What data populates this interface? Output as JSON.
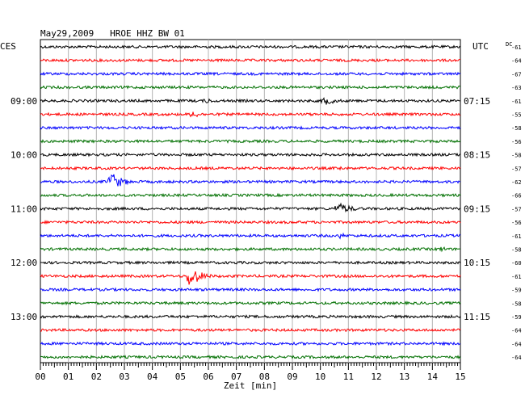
{
  "header": {
    "title": "May29,2009   HROE HHZ BW 01",
    "left_zone": "CES",
    "right_zone": "UTC",
    "dc_label": "DC"
  },
  "chart_data": {
    "type": "line",
    "title": "May29,2009   HROE HHZ BW 01",
    "xlabel": "Zeit [min]",
    "xlim": [
      0,
      15
    ],
    "x_ticks": [
      "00",
      "01",
      "02",
      "03",
      "04",
      "05",
      "06",
      "07",
      "08",
      "09",
      "10",
      "11",
      "12",
      "13",
      "14",
      "15"
    ],
    "grid": true,
    "trace_colors": [
      "#000000",
      "#ff0000",
      "#0000ff",
      "#007000"
    ],
    "rows": 24,
    "left_time_labels": [
      {
        "row": 4,
        "text": "09:00"
      },
      {
        "row": 8,
        "text": "10:00"
      },
      {
        "row": 12,
        "text": "11:00"
      },
      {
        "row": 16,
        "text": "12:00"
      },
      {
        "row": 20,
        "text": "13:00"
      }
    ],
    "right_time_labels": [
      {
        "row": 0,
        "text": "UTC"
      },
      {
        "row": 4,
        "text": "07:15"
      },
      {
        "row": 8,
        "text": "08:15"
      },
      {
        "row": 12,
        "text": "09:15"
      },
      {
        "row": 16,
        "text": "10:15"
      },
      {
        "row": 20,
        "text": "11:15"
      }
    ],
    "dc_offsets": [
      "-61",
      "-64",
      "-67",
      "-63",
      "-61",
      "-55",
      "-58",
      "-56",
      "-58",
      "-57",
      "-62",
      "-66",
      "-57",
      "-56",
      "-61",
      "-58",
      "-60",
      "-61",
      "-59",
      "-58",
      "-59",
      "-64",
      "-64",
      "-64"
    ],
    "events": [
      {
        "row": 4,
        "minute": 5.9,
        "amp": 4,
        "dur": 0.9
      },
      {
        "row": 4,
        "minute": 10.1,
        "amp": 6,
        "dur": 1.5
      },
      {
        "row": 5,
        "minute": 5.4,
        "amp": 6,
        "dur": 1.0
      },
      {
        "row": 9,
        "minute": 10.7,
        "amp": 3,
        "dur": 0.8
      },
      {
        "row": 10,
        "minute": 2.5,
        "amp": 13,
        "dur": 1.2
      },
      {
        "row": 12,
        "minute": 10.6,
        "amp": 8,
        "dur": 1.6
      },
      {
        "row": 14,
        "minute": 10.7,
        "amp": 4,
        "dur": 0.8
      },
      {
        "row": 15,
        "minute": 14.3,
        "amp": 4,
        "dur": 0.8
      },
      {
        "row": 16,
        "minute": 7.0,
        "amp": 3,
        "dur": 0.8
      },
      {
        "row": 17,
        "minute": 5.3,
        "amp": 15,
        "dur": 1.2
      },
      {
        "row": 19,
        "minute": 8.9,
        "amp": 2,
        "dur": 0.6
      }
    ]
  }
}
